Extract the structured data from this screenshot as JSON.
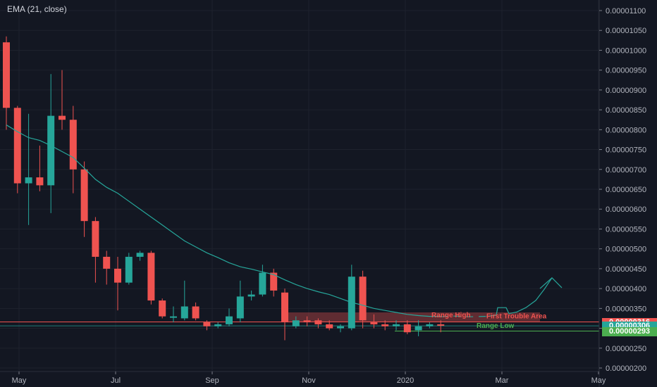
{
  "legend": "EMA (21, close)",
  "colors": {
    "up": "#26a69a",
    "down": "#ef5350",
    "ema": "#26a69a",
    "range_high": "#ef5350",
    "range_low": "#4caf50",
    "grid": "#1e222d",
    "axis_text": "#b2b5be"
  },
  "chart_data": {
    "type": "candlestick",
    "x_ticks": [
      {
        "label": "May",
        "month": 0
      },
      {
        "label": "Jul",
        "month": 2
      },
      {
        "label": "Sep",
        "month": 4
      },
      {
        "label": "Nov",
        "month": 6
      },
      {
        "label": "2020",
        "month": 8
      },
      {
        "label": "Mar",
        "month": 10
      },
      {
        "label": "May",
        "month": 12
      }
    ],
    "y_ticks": [
      "0.00001100",
      "0.00001050",
      "0.00001000",
      "0.00000950",
      "0.00000900",
      "0.00000850",
      "0.00000800",
      "0.00000750",
      "0.00000700",
      "0.00000650",
      "0.00000600",
      "0.00000550",
      "0.00000500",
      "0.00000450",
      "0.00000400",
      "0.00000350",
      "0.00000300",
      "0.00000250",
      "0.00000200"
    ],
    "ylim": [
      2e-06,
      1.1e-05
    ],
    "candles": [
      {
        "o": 1020,
        "h": 1035,
        "l": 800,
        "c": 855
      },
      {
        "o": 855,
        "h": 860,
        "l": 640,
        "c": 665
      },
      {
        "o": 665,
        "h": 840,
        "l": 560,
        "c": 680
      },
      {
        "o": 680,
        "h": 760,
        "l": 645,
        "c": 660
      },
      {
        "o": 660,
        "h": 940,
        "l": 590,
        "c": 835
      },
      {
        "o": 835,
        "h": 950,
        "l": 800,
        "c": 825
      },
      {
        "o": 825,
        "h": 860,
        "l": 640,
        "c": 700
      },
      {
        "o": 700,
        "h": 720,
        "l": 530,
        "c": 570
      },
      {
        "o": 570,
        "h": 580,
        "l": 415,
        "c": 480
      },
      {
        "o": 480,
        "h": 495,
        "l": 410,
        "c": 450
      },
      {
        "o": 450,
        "h": 480,
        "l": 345,
        "c": 415
      },
      {
        "o": 415,
        "h": 490,
        "l": 410,
        "c": 480
      },
      {
        "o": 480,
        "h": 495,
        "l": 470,
        "c": 490
      },
      {
        "o": 490,
        "h": 495,
        "l": 360,
        "c": 370
      },
      {
        "o": 370,
        "h": 375,
        "l": 325,
        "c": 330
      },
      {
        "o": 330,
        "h": 355,
        "l": 315,
        "c": 330
      },
      {
        "o": 325,
        "h": 420,
        "l": 320,
        "c": 355
      },
      {
        "o": 355,
        "h": 365,
        "l": 320,
        "c": 325
      },
      {
        "o": 315,
        "h": 320,
        "l": 295,
        "c": 305
      },
      {
        "o": 305,
        "h": 315,
        "l": 300,
        "c": 310
      },
      {
        "o": 310,
        "h": 350,
        "l": 305,
        "c": 330
      },
      {
        "o": 325,
        "h": 420,
        "l": 315,
        "c": 380
      },
      {
        "o": 380,
        "h": 395,
        "l": 370,
        "c": 385
      },
      {
        "o": 385,
        "h": 460,
        "l": 380,
        "c": 440
      },
      {
        "o": 440,
        "h": 450,
        "l": 380,
        "c": 395
      },
      {
        "o": 390,
        "h": 400,
        "l": 270,
        "c": 315
      },
      {
        "o": 305,
        "h": 330,
        "l": 300,
        "c": 320
      },
      {
        "o": 320,
        "h": 330,
        "l": 305,
        "c": 315
      },
      {
        "o": 320,
        "h": 325,
        "l": 300,
        "c": 310
      },
      {
        "o": 310,
        "h": 320,
        "l": 295,
        "c": 300
      },
      {
        "o": 300,
        "h": 310,
        "l": 290,
        "c": 305
      },
      {
        "o": 300,
        "h": 460,
        "l": 295,
        "c": 430
      },
      {
        "o": 430,
        "h": 445,
        "l": 300,
        "c": 320
      },
      {
        "o": 315,
        "h": 335,
        "l": 300,
        "c": 310
      },
      {
        "o": 310,
        "h": 320,
        "l": 295,
        "c": 305
      },
      {
        "o": 305,
        "h": 320,
        "l": 295,
        "c": 310
      },
      {
        "o": 310,
        "h": 320,
        "l": 285,
        "c": 290
      },
      {
        "o": 295,
        "h": 320,
        "l": 280,
        "c": 305
      },
      {
        "o": 305,
        "h": 315,
        "l": 300,
        "c": 310
      },
      {
        "o": 310,
        "h": 320,
        "l": 290,
        "c": 308
      }
    ],
    "ema": [
      812,
      795,
      780,
      773,
      760,
      745,
      730,
      703,
      675,
      655,
      640,
      620,
      600,
      580,
      560,
      540,
      520,
      505,
      490,
      478,
      465,
      455,
      449,
      442,
      435,
      422,
      410,
      400,
      392,
      385,
      375,
      365,
      358,
      350,
      345,
      340,
      335,
      332,
      330,
      330,
      329,
      330,
      332,
      335,
      345,
      355,
      375,
      400,
      430,
      445
    ],
    "annotations": [
      {
        "text": "Range High",
        "color": "#ef5350"
      },
      {
        "text": "First Trouble Area",
        "color": "#ef5350"
      },
      {
        "text": "Range Low",
        "color": "#4caf50"
      }
    ],
    "levels": [
      {
        "label": "0.00000316",
        "value": 316,
        "color": "#ef5350"
      },
      {
        "label": "0.00000306",
        "value": 306,
        "color": "#26a69a"
      },
      {
        "label": "0.00000293",
        "value": 293,
        "color": "#4caf50"
      }
    ]
  }
}
